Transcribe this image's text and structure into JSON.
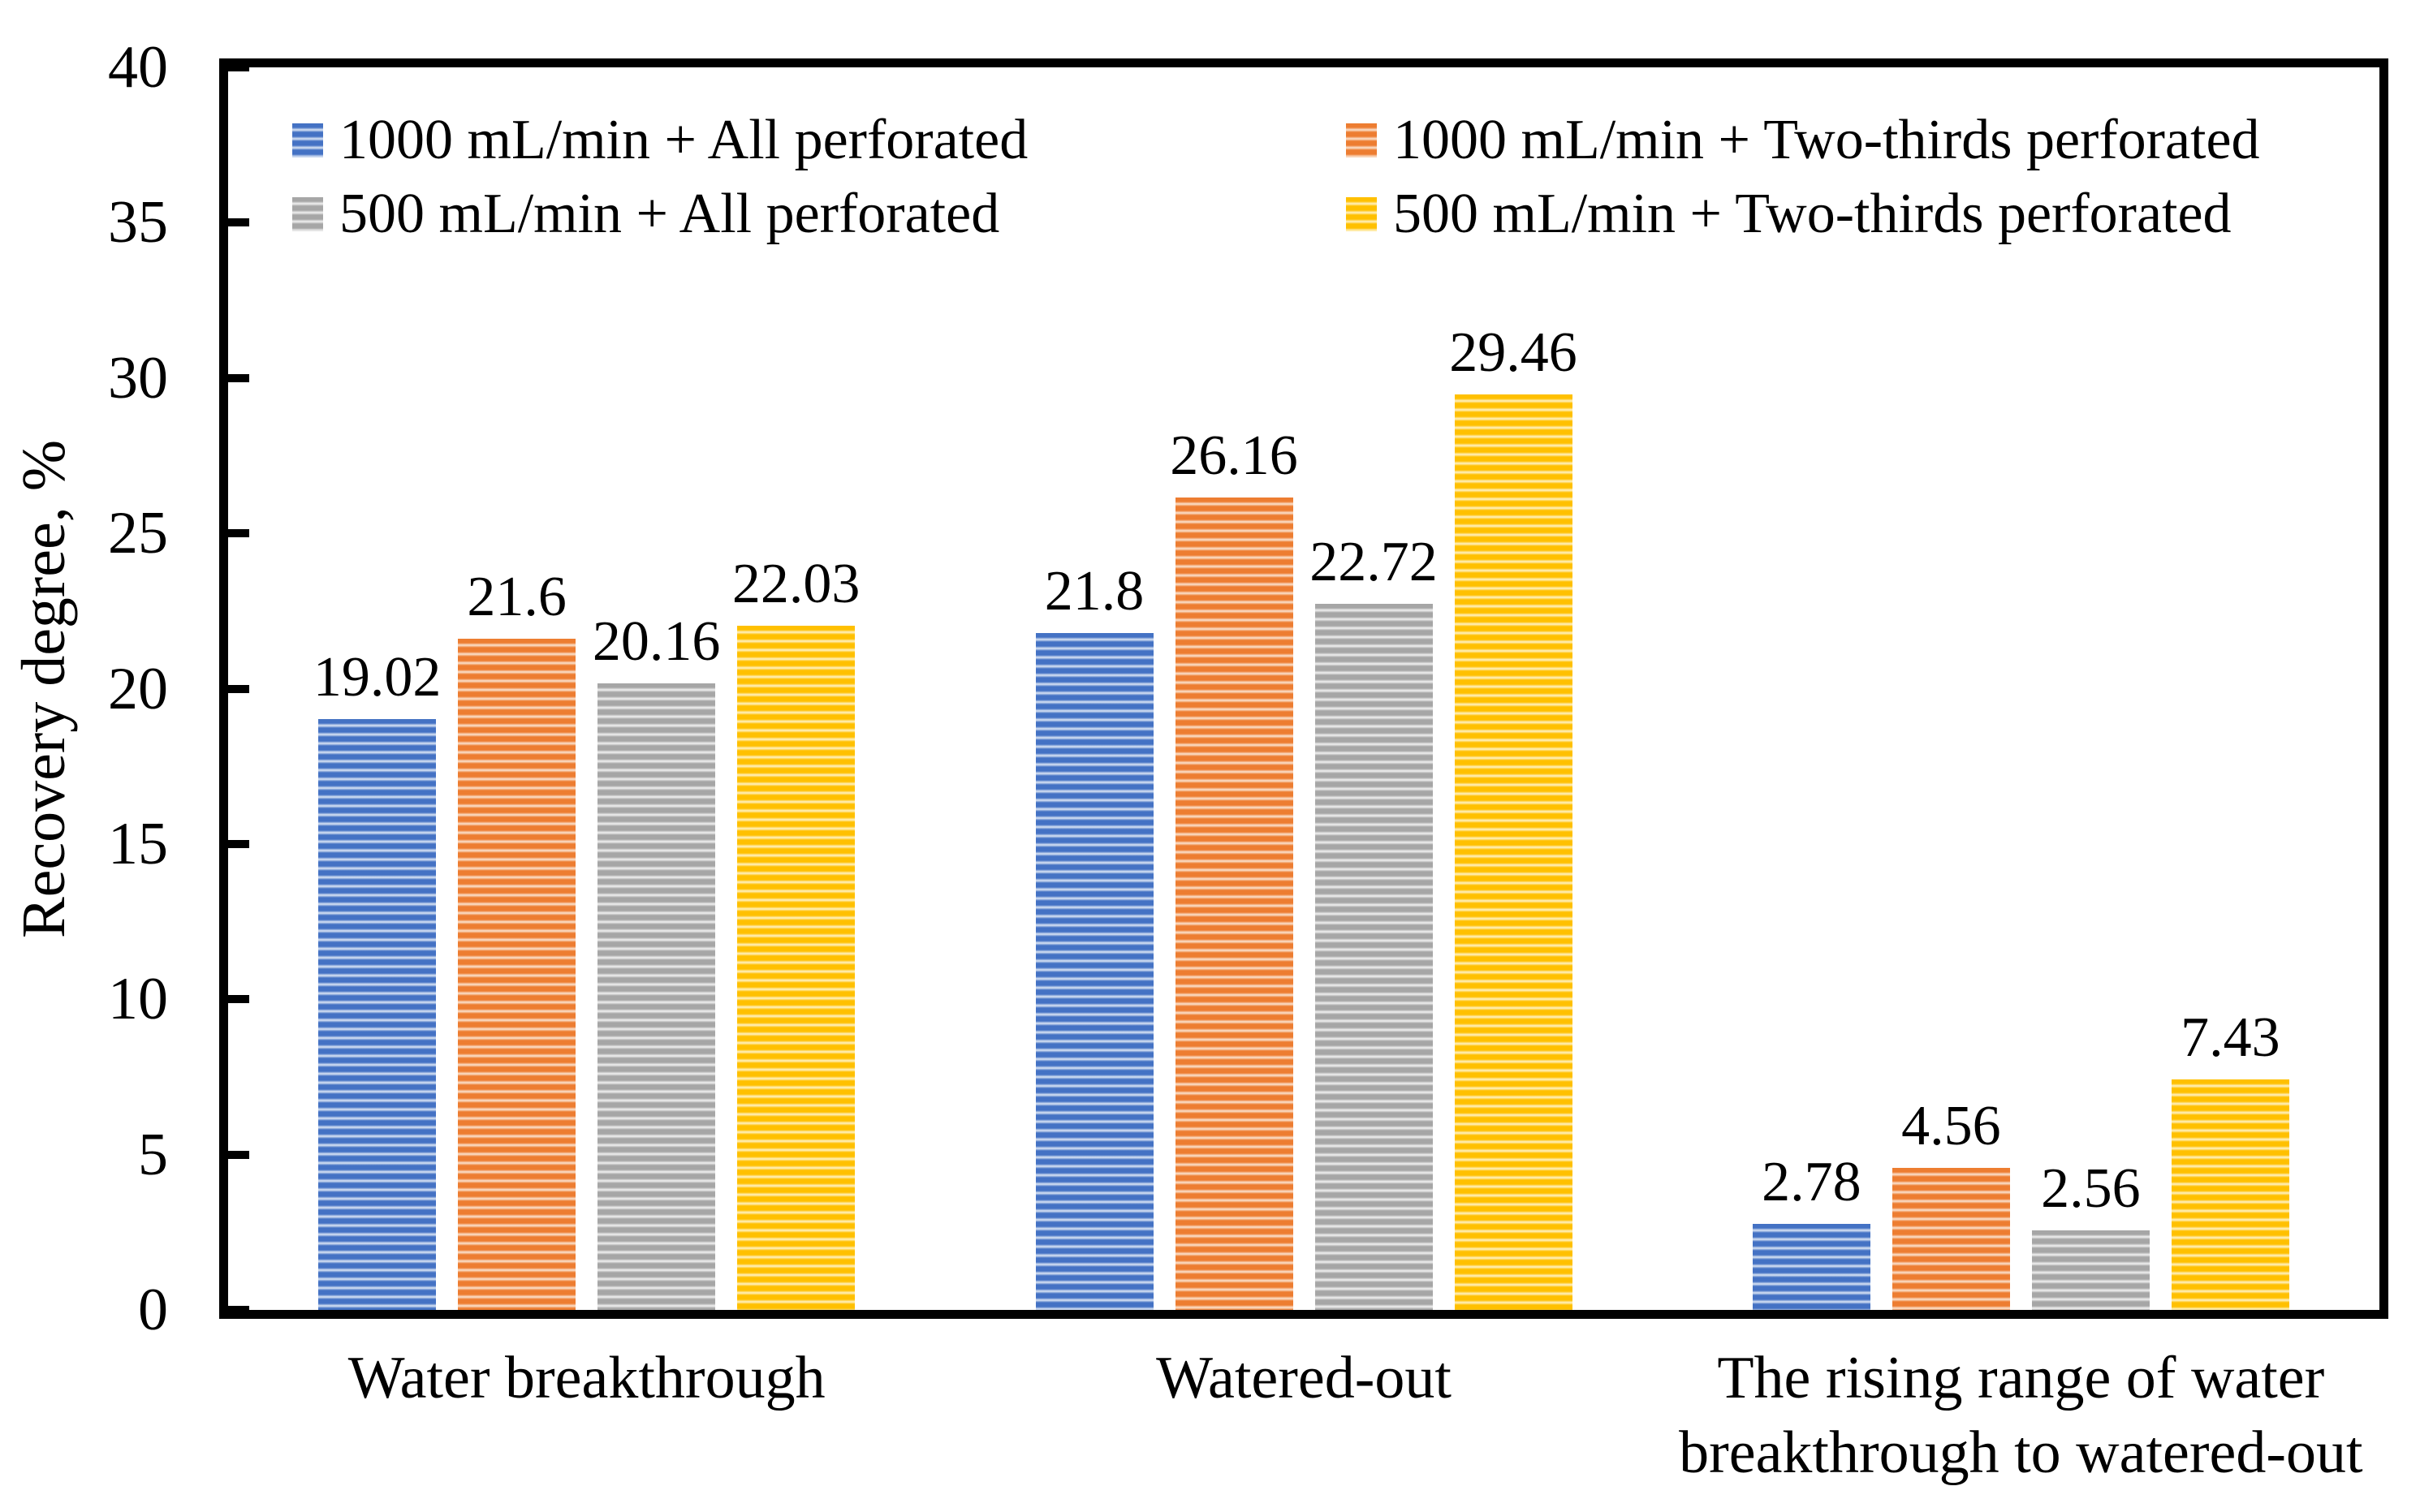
{
  "figure": {
    "background": "#ffffff",
    "text_color": "#000000",
    "axis_color": "#000000"
  },
  "chart_data": {
    "type": "bar",
    "title": "",
    "xlabel": "",
    "ylabel": "Recovery degree, %",
    "ylim": [
      0,
      40
    ],
    "yticks": [
      0,
      5,
      10,
      15,
      20,
      25,
      30,
      35,
      40
    ],
    "grid": false,
    "legend_position": "top-inside, two columns",
    "bar_fill_style": "horizontal-stripes",
    "categories": [
      "Water breakthrough",
      "Watered-out",
      "The rising range of water breakthrough to watered-out"
    ],
    "series": [
      {
        "name": "1000 mL/min + All perforated",
        "color": "#4472C4",
        "light": "#dce6f5",
        "values": [
          19.02,
          21.8,
          2.78
        ],
        "labels": [
          "19.02",
          "21.8",
          "2.78"
        ]
      },
      {
        "name": "1000 mL/min + Two-thirds perforated",
        "color": "#ED7D31",
        "light": "#fbe3d0",
        "values": [
          21.6,
          26.16,
          4.56
        ],
        "labels": [
          "21.6",
          "26.16",
          "4.56"
        ]
      },
      {
        "name": "500 mL/min + All perforated",
        "color": "#A6A6A6",
        "light": "#f1f1f1",
        "values": [
          20.16,
          22.72,
          2.56
        ],
        "labels": [
          "20.16",
          "22.72",
          "2.56"
        ]
      },
      {
        "name": "500 mL/min + Two-thirds perforated",
        "color": "#FFC000",
        "light": "#fff2c5",
        "values": [
          22.03,
          29.46,
          7.43
        ],
        "labels": [
          "22.03",
          "29.46",
          "7.43"
        ]
      }
    ]
  }
}
